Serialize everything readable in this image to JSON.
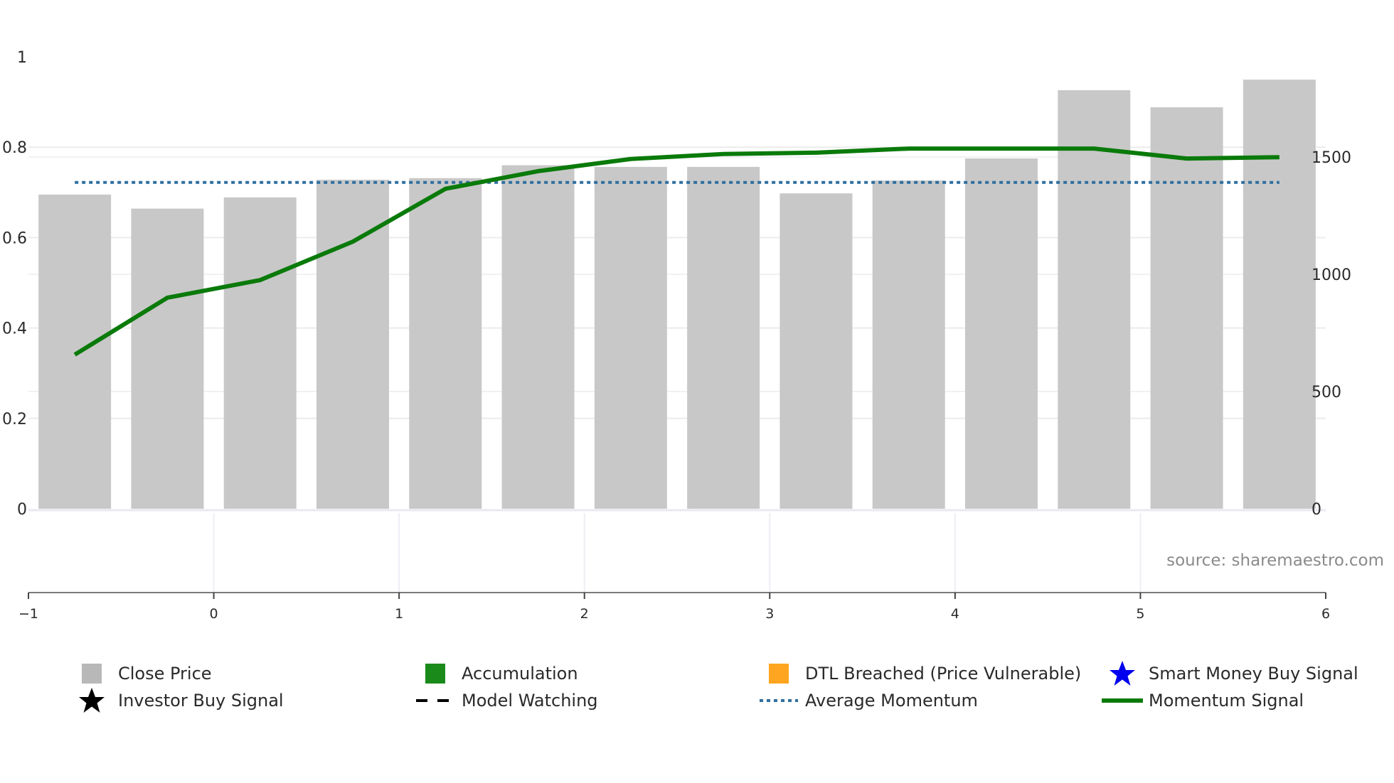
{
  "chart_data": {
    "type": "bar",
    "title": "",
    "xlabel": "",
    "ylabel_left": "",
    "ylabel_right": "",
    "x_axis": {
      "range": [
        -1,
        6
      ],
      "ticks": [
        -1,
        0,
        1,
        2,
        3,
        4,
        5,
        6
      ],
      "tick_labels": [
        "−1",
        "0",
        "1",
        "2",
        "3",
        "4",
        "5",
        "6"
      ]
    },
    "y_left": {
      "range": [
        0,
        1
      ],
      "ticks": [
        0,
        0.2,
        0.4,
        0.6,
        0.8,
        1
      ],
      "tick_labels": [
        "0",
        "0.2",
        "0.4",
        "0.6",
        "0.8",
        "1"
      ]
    },
    "y_right": {
      "range": [
        0,
        1930
      ],
      "ticks": [
        0,
        500,
        1000,
        1500
      ],
      "tick_labels": [
        "0",
        "500",
        "1000",
        "1500"
      ]
    },
    "x": [
      -0.75,
      -0.25,
      0.25,
      0.75,
      1.25,
      1.75,
      2.25,
      2.75,
      3.25,
      3.75,
      4.25,
      4.75,
      5.25,
      5.75
    ],
    "series": [
      {
        "name": "Close Price",
        "type": "bar",
        "axis": "right",
        "color": "#c8c8c8",
        "values": [
          1340,
          1280,
          1328,
          1403,
          1410,
          1465,
          1458,
          1458,
          1345,
          1400,
          1494,
          1785,
          1712,
          1830
        ]
      },
      {
        "name": "Momentum Signal",
        "type": "line",
        "axis": "left",
        "color": "#0a7a0a",
        "values": [
          0.341,
          0.467,
          0.506,
          0.591,
          0.708,
          0.747,
          0.774,
          0.785,
          0.788,
          0.797,
          0.797,
          0.797,
          0.775,
          0.778
        ]
      },
      {
        "name": "Average Momentum",
        "type": "line",
        "axis": "left",
        "style": "dotted",
        "color": "#2f6f9f",
        "values": [
          0.722,
          0.722,
          0.722,
          0.722,
          0.722,
          0.722,
          0.722,
          0.722,
          0.722,
          0.722,
          0.722,
          0.722,
          0.722,
          0.722
        ]
      }
    ],
    "annotations": [
      "source: sharemaestro.com"
    ],
    "grid": true,
    "legend_position": "bottom"
  },
  "legend": {
    "items": [
      {
        "label": "Close Price",
        "symbol": "square",
        "color": "#b8b8b8"
      },
      {
        "label": "Accumulation",
        "symbol": "square",
        "color": "#1a8a1a"
      },
      {
        "label": "DTL Breached (Price Vulnerable)",
        "symbol": "square",
        "color": "#ffa51f"
      },
      {
        "label": "Smart Money Buy Signal",
        "symbol": "star",
        "color": "#0000ee"
      },
      {
        "label": "Investor Buy Signal",
        "symbol": "star",
        "color": "#000000"
      },
      {
        "label": "Model Watching",
        "symbol": "dash",
        "color": "#000000"
      },
      {
        "label": "Average Momentum",
        "symbol": "dot",
        "color": "#2f6f9f"
      },
      {
        "label": "Momentum Signal",
        "symbol": "line",
        "color": "#0a7a0a"
      }
    ]
  },
  "source_text": "source: sharemaestro.com"
}
